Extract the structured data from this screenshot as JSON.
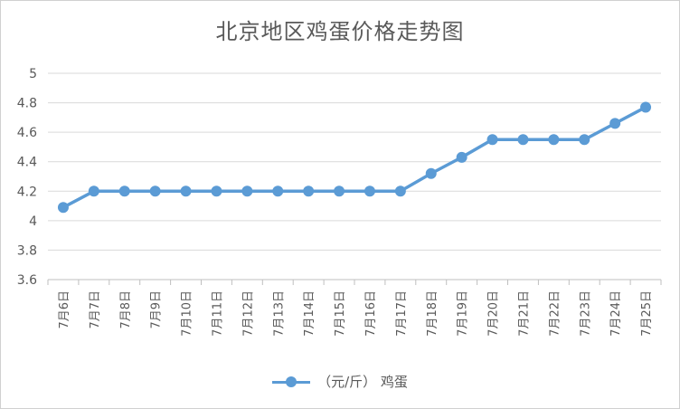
{
  "chart_data": {
    "type": "line",
    "title": "北京地区鸡蛋价格走势图",
    "xlabel": "",
    "ylabel": "",
    "categories": [
      "7月6日",
      "7月7日",
      "7月8日",
      "7月9日",
      "7月10日",
      "7月11日",
      "7月12日",
      "7月13日",
      "7月14日",
      "7月15日",
      "7月16日",
      "7月17日",
      "7月18日",
      "7月19日",
      "7月20日",
      "7月21日",
      "7月22日",
      "7月23日",
      "7月24日",
      "7月25日"
    ],
    "series": [
      {
        "name": "（元/斤） 鸡蛋",
        "values": [
          4.09,
          4.2,
          4.2,
          4.2,
          4.2,
          4.2,
          4.2,
          4.2,
          4.2,
          4.2,
          4.2,
          4.2,
          4.32,
          4.43,
          4.55,
          4.55,
          4.55,
          4.55,
          4.66,
          4.77
        ]
      }
    ],
    "ylim": [
      3.6,
      5
    ],
    "yticks": [
      "3.6",
      "3.8",
      "4",
      "4.2",
      "4.4",
      "4.6",
      "4.8",
      "5"
    ],
    "grid": true,
    "legend_position": "bottom",
    "colors": {
      "series": "#5b9bd5",
      "grid": "#d9d9d9",
      "text": "#595959"
    }
  }
}
